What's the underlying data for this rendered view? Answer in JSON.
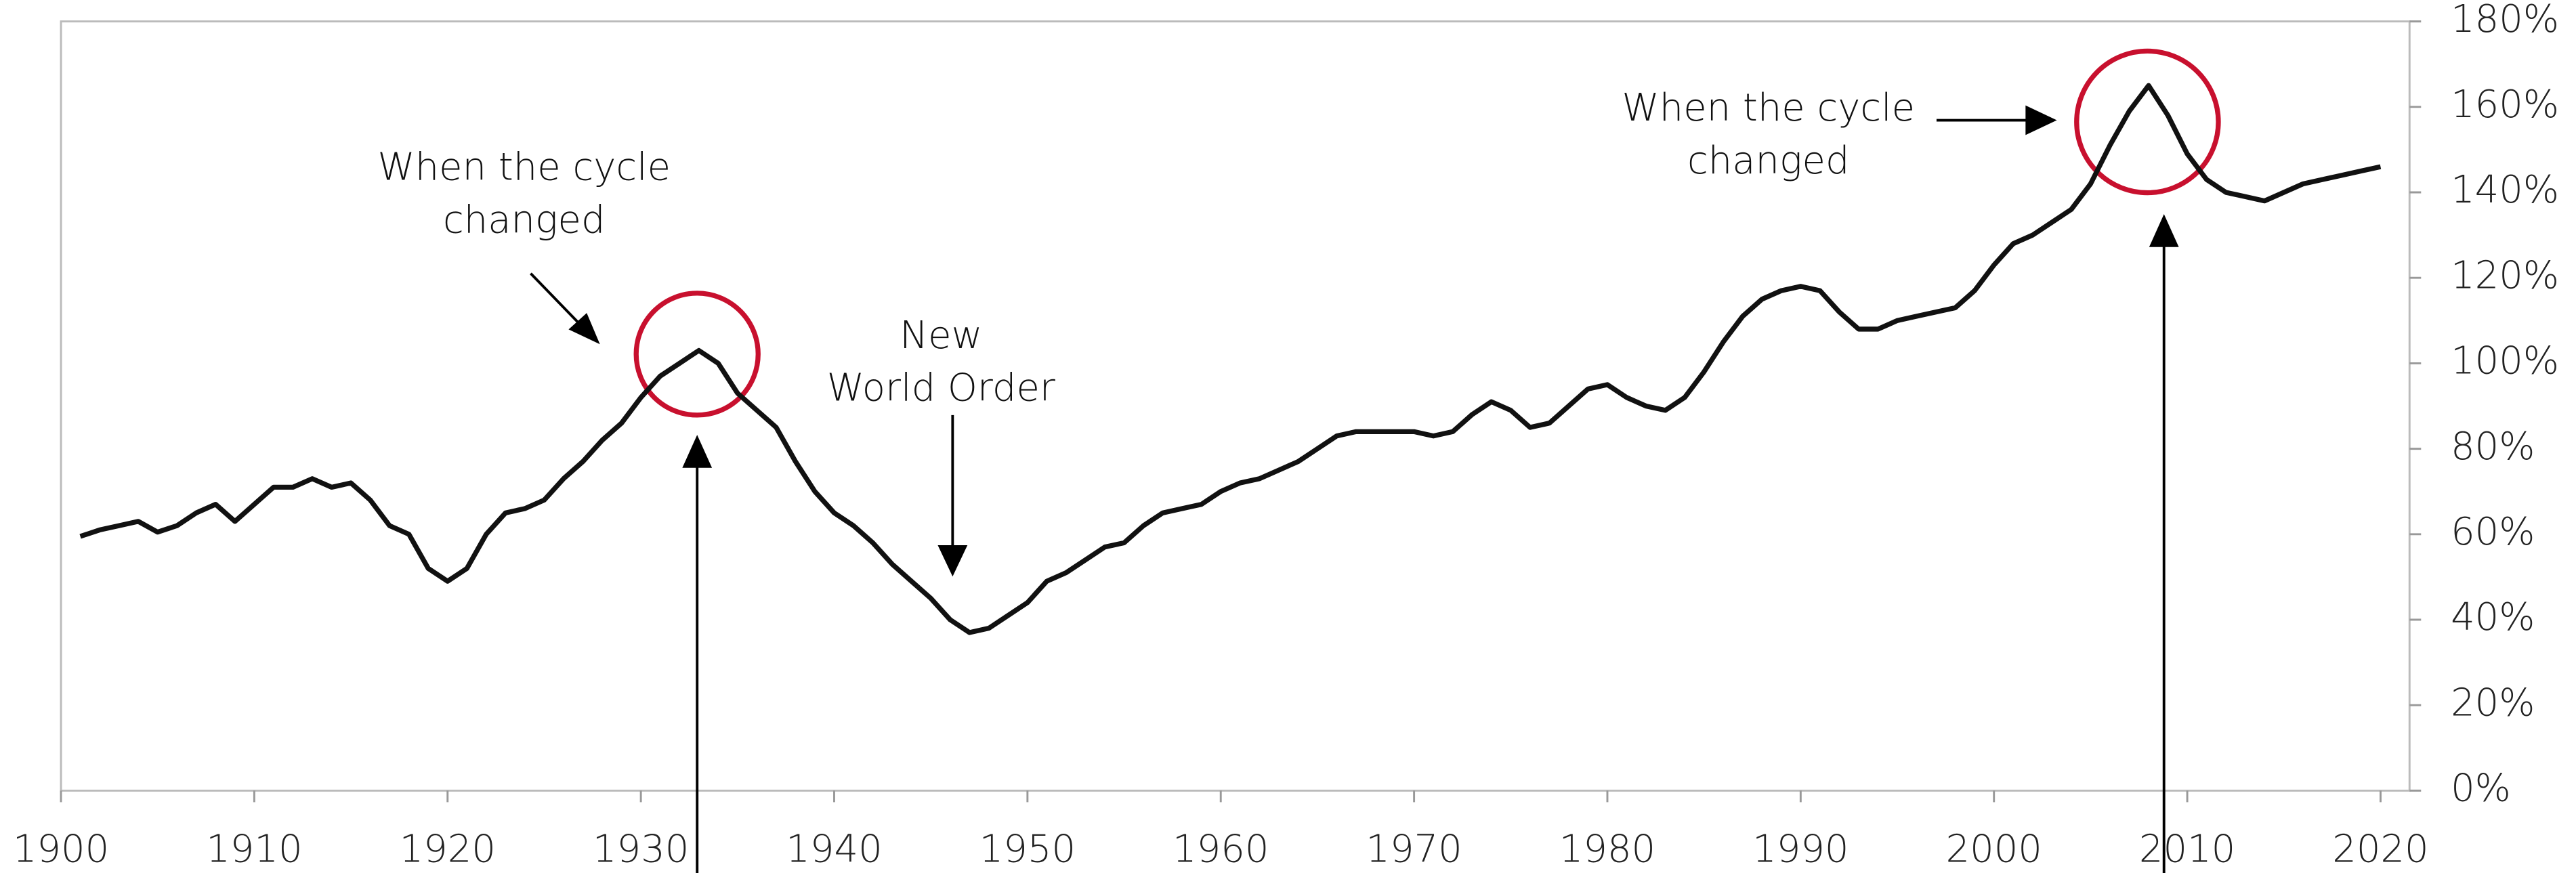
{
  "chart_data": {
    "type": "line",
    "x": [
      1901,
      1902,
      1903,
      1904,
      1905,
      1906,
      1907,
      1908,
      1909,
      1910,
      1911,
      1912,
      1913,
      1914,
      1915,
      1916,
      1917,
      1918,
      1919,
      1920,
      1921,
      1922,
      1923,
      1924,
      1925,
      1926,
      1927,
      1928,
      1929,
      1930,
      1931,
      1932,
      1933,
      1934,
      1935,
      1936,
      1937,
      1938,
      1939,
      1940,
      1941,
      1942,
      1943,
      1944,
      1945,
      1946,
      1947,
      1948,
      1949,
      1950,
      1951,
      1952,
      1953,
      1954,
      1955,
      1956,
      1957,
      1958,
      1959,
      1960,
      1961,
      1962,
      1963,
      1964,
      1965,
      1966,
      1967,
      1968,
      1969,
      1970,
      1971,
      1972,
      1973,
      1974,
      1975,
      1976,
      1977,
      1978,
      1979,
      1980,
      1981,
      1982,
      1983,
      1984,
      1985,
      1986,
      1987,
      1988,
      1989,
      1990,
      1991,
      1992,
      1993,
      1994,
      1995,
      1996,
      1997,
      1998,
      1999,
      2000,
      2001,
      2002,
      2003,
      2004,
      2005,
      2006,
      2007,
      2008,
      2009,
      2010,
      2011,
      2012,
      2013,
      2014,
      2015,
      2016,
      2017,
      2018,
      2019,
      2020
    ],
    "series": [
      {
        "color": "#111111",
        "values": [
          59.5,
          61,
          62,
          63,
          60.5,
          62,
          65,
          67,
          63,
          67,
          71,
          71,
          73,
          71,
          72,
          68,
          62,
          60,
          52,
          49,
          52,
          60,
          65,
          66,
          68,
          73,
          77,
          82,
          86,
          92,
          97,
          100,
          103,
          100,
          93,
          89,
          85,
          77,
          70,
          65,
          62,
          58,
          53,
          49,
          45,
          40,
          37,
          38,
          41,
          44,
          49,
          51,
          54,
          57,
          58,
          62,
          65,
          66,
          67,
          70,
          72,
          73,
          75,
          77,
          80,
          83,
          84,
          84,
          84,
          84,
          83,
          84,
          88,
          91,
          89,
          85,
          86,
          90,
          94,
          95,
          92,
          90,
          89,
          92,
          98,
          105,
          111,
          115,
          117,
          118,
          117,
          112,
          108,
          108,
          110,
          111,
          112,
          113,
          117,
          123,
          128,
          130,
          133,
          136,
          142,
          151,
          159,
          165,
          158,
          149,
          143,
          140,
          139,
          138,
          140,
          142,
          143,
          144,
          145,
          146
        ]
      }
    ],
    "xlim": [
      1900,
      2021.5
    ],
    "xticks": [
      1900,
      1910,
      1920,
      1930,
      1940,
      1950,
      1960,
      1970,
      1980,
      1990,
      2000,
      2010,
      2020
    ],
    "ylim": [
      0,
      180
    ],
    "yticks": [
      {
        "value": 0,
        "label": "0%"
      },
      {
        "value": 20,
        "label": "20%"
      },
      {
        "value": 40,
        "label": "40%"
      },
      {
        "value": 60,
        "label": "60%"
      },
      {
        "value": 80,
        "label": "80%"
      },
      {
        "value": 100,
        "label": "100%"
      },
      {
        "value": 120,
        "label": "120%"
      },
      {
        "value": 140,
        "label": "140%"
      },
      {
        "value": 160,
        "label": "160%"
      },
      {
        "value": 180,
        "label": "180%"
      }
    ],
    "annotations": [
      {
        "lines": [
          "When the cycle",
          "changed"
        ]
      },
      {
        "lines": [
          "New",
          "World Order"
        ]
      },
      {
        "lines": [
          "When the cycle",
          "changed"
        ]
      }
    ]
  }
}
